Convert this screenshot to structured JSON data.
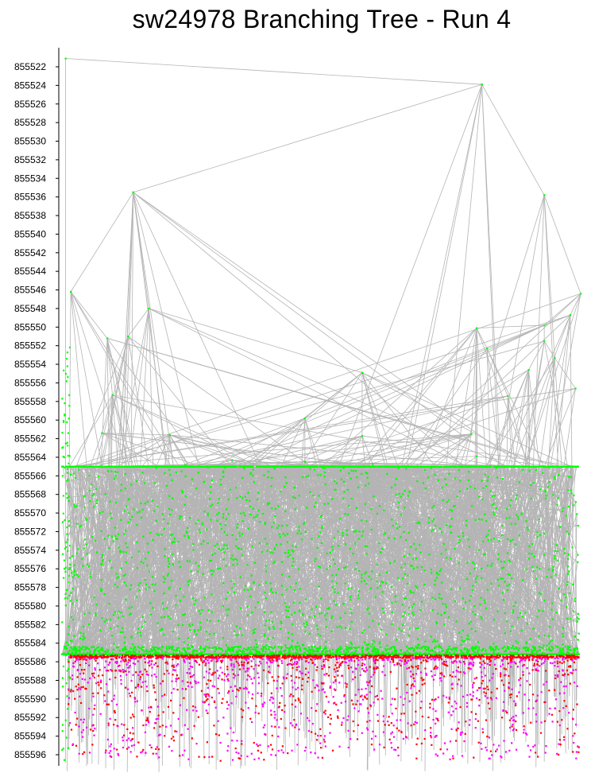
{
  "chart_data": {
    "type": "scatter",
    "title": "sw24978 Branching Tree - Run 4",
    "xlabel": "",
    "ylabel": "",
    "y_axis_inverted": true,
    "ylim": [
      855521,
      855597
    ],
    "y_ticks": [
      855522,
      855524,
      855526,
      855528,
      855530,
      855532,
      855534,
      855536,
      855538,
      855540,
      855542,
      855544,
      855546,
      855548,
      855550,
      855552,
      855554,
      855556,
      855558,
      855560,
      855562,
      855564,
      855566,
      855568,
      855570,
      855572,
      855574,
      855576,
      855578,
      855580,
      855582,
      855584,
      855586,
      855588,
      855590,
      855592,
      855594,
      855596
    ],
    "grid": false,
    "legend": "none",
    "colors": {
      "edge": "#b4b4b4",
      "node_green": "#00ff00",
      "node_magenta": "#ff00ff",
      "node_red": "#ff0000",
      "axis": "#000000"
    },
    "series": [
      {
        "color": "#00ff00",
        "y_range": [
          855521.1,
          855585.2
        ]
      },
      {
        "color": "#ff00ff",
        "y_range": [
          855585.2,
          855596
        ]
      },
      {
        "color": "#ff0000",
        "y_range": [
          855585.2,
          855596
        ]
      }
    ],
    "tree_edges_sample": [
      {
        "from": [
          0.01,
          855521.1
        ],
        "to": [
          0.81,
          855523.9
        ]
      },
      {
        "from": [
          0.81,
          855523.9
        ],
        "to": [
          0.14,
          855535.5
        ]
      },
      {
        "from": [
          0.81,
          855523.9
        ],
        "to": [
          0.93,
          855535.8
        ]
      },
      {
        "from": [
          0.93,
          855535.8
        ],
        "to": [
          1.0,
          855546.4
        ]
      },
      {
        "from": [
          0.14,
          855535.5
        ],
        "to": [
          0.02,
          855546.2
        ]
      },
      {
        "from": [
          0.14,
          855535.5
        ],
        "to": [
          0.17,
          855548.0
        ]
      },
      {
        "from": [
          0.17,
          855548.0
        ],
        "to": [
          0.58,
          855554.9
        ]
      },
      {
        "from": [
          0.58,
          855554.9
        ],
        "to": [
          0.47,
          855559.8
        ]
      },
      {
        "from": [
          0.58,
          855554.9
        ],
        "to": [
          0.58,
          855561.7
        ]
      },
      {
        "from": [
          0.02,
          855546.2
        ],
        "to": [
          0.09,
          855551.2
        ]
      }
    ]
  }
}
